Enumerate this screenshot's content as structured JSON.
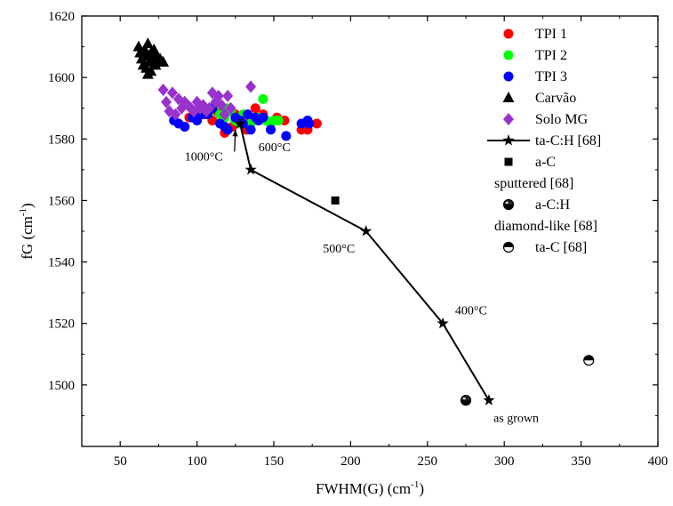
{
  "chart_data": {
    "type": "scatter",
    "xlabel": "FWHM(G) (cm",
    "xlabel_sup": "-1",
    "xlabel_end": ")",
    "ylabel": "fG (cm",
    "ylabel_sup": "-1",
    "ylabel_end": ")",
    "xlim": [
      25,
      400
    ],
    "ylim": [
      1480,
      1620
    ],
    "xticks": [
      50,
      100,
      150,
      200,
      250,
      300,
      350,
      400
    ],
    "yticks": [
      1500,
      1520,
      1540,
      1560,
      1580,
      1600,
      1620
    ],
    "grid": false,
    "legend_position": "top-right",
    "series": [
      {
        "name": "TPI 1",
        "marker": "circle",
        "color": "#ff0000",
        "points": [
          [
            95,
            1587
          ],
          [
            100,
            1588
          ],
          [
            105,
            1588
          ],
          [
            110,
            1586
          ],
          [
            113,
            1589
          ],
          [
            118,
            1582
          ],
          [
            120,
            1583
          ],
          [
            123,
            1584
          ],
          [
            125,
            1588
          ],
          [
            128,
            1587
          ],
          [
            130,
            1585
          ],
          [
            132,
            1583
          ],
          [
            135,
            1587
          ],
          [
            138,
            1590
          ],
          [
            140,
            1586
          ],
          [
            143,
            1588
          ],
          [
            148,
            1585
          ],
          [
            152,
            1587
          ],
          [
            157,
            1586
          ],
          [
            168,
            1583
          ],
          [
            170,
            1585
          ],
          [
            172,
            1583
          ],
          [
            178,
            1585
          ]
        ]
      },
      {
        "name": "TPI 2",
        "marker": "circle",
        "color": "#00ff00",
        "points": [
          [
            105,
            1590
          ],
          [
            108,
            1589
          ],
          [
            112,
            1591
          ],
          [
            115,
            1588
          ],
          [
            118,
            1587
          ],
          [
            120,
            1590
          ],
          [
            122,
            1589
          ],
          [
            125,
            1586
          ],
          [
            128,
            1585
          ],
          [
            130,
            1588
          ],
          [
            135,
            1585
          ],
          [
            140,
            1587
          ],
          [
            143,
            1593
          ],
          [
            145,
            1586
          ],
          [
            148,
            1585
          ],
          [
            150,
            1586
          ],
          [
            153,
            1586
          ]
        ]
      },
      {
        "name": "TPI 3",
        "marker": "circle",
        "color": "#0000ff",
        "points": [
          [
            85,
            1586
          ],
          [
            88,
            1585
          ],
          [
            92,
            1584
          ],
          [
            97,
            1587
          ],
          [
            100,
            1586
          ],
          [
            103,
            1588
          ],
          [
            107,
            1588
          ],
          [
            110,
            1590
          ],
          [
            115,
            1585
          ],
          [
            118,
            1584
          ],
          [
            120,
            1583
          ],
          [
            125,
            1587
          ],
          [
            128,
            1586
          ],
          [
            130,
            1585
          ],
          [
            133,
            1588
          ],
          [
            135,
            1583
          ],
          [
            138,
            1587
          ],
          [
            140,
            1586
          ],
          [
            143,
            1587
          ],
          [
            148,
            1583
          ],
          [
            158,
            1581
          ],
          [
            168,
            1585
          ],
          [
            172,
            1586
          ],
          [
            173,
            1585
          ]
        ]
      },
      {
        "name": "Carvão",
        "marker": "triangle",
        "color": "#000000",
        "points": [
          [
            62,
            1610
          ],
          [
            63,
            1608
          ],
          [
            64,
            1606
          ],
          [
            65,
            1604
          ],
          [
            66,
            1609
          ],
          [
            67,
            1603
          ],
          [
            67,
            1607
          ],
          [
            68,
            1601
          ],
          [
            68,
            1611
          ],
          [
            69,
            1605
          ],
          [
            70,
            1602
          ],
          [
            70,
            1608
          ],
          [
            71,
            1606
          ],
          [
            72,
            1609
          ],
          [
            73,
            1604
          ],
          [
            74,
            1607
          ],
          [
            75,
            1605
          ],
          [
            76,
            1606
          ],
          [
            78,
            1605
          ]
        ]
      },
      {
        "name": "Solo MG",
        "marker": "diamond",
        "color": "#9932cc",
        "points": [
          [
            78,
            1596
          ],
          [
            80,
            1592
          ],
          [
            82,
            1589
          ],
          [
            84,
            1595
          ],
          [
            86,
            1588
          ],
          [
            88,
            1593
          ],
          [
            90,
            1590
          ],
          [
            92,
            1592
          ],
          [
            94,
            1591
          ],
          [
            96,
            1590
          ],
          [
            98,
            1589
          ],
          [
            100,
            1592
          ],
          [
            102,
            1590
          ],
          [
            104,
            1591
          ],
          [
            106,
            1589
          ],
          [
            108,
            1590
          ],
          [
            110,
            1595
          ],
          [
            112,
            1592
          ],
          [
            114,
            1594
          ],
          [
            116,
            1591
          ],
          [
            118,
            1588
          ],
          [
            120,
            1594
          ],
          [
            122,
            1590
          ],
          [
            135,
            1597
          ]
        ]
      },
      {
        "name": "ta-C:H [68]",
        "marker": "star",
        "color": "#000000",
        "line": true,
        "points": [
          [
            128,
            1585
          ],
          [
            135,
            1570
          ],
          [
            210,
            1550
          ],
          [
            260,
            1520
          ],
          [
            290,
            1495
          ]
        ]
      },
      {
        "name": "a-C sputtered [68]",
        "legend_lines": [
          "a-C",
          "sputtered [68]"
        ],
        "marker": "square",
        "color": "#000000",
        "points": [
          [
            190,
            1560
          ]
        ]
      },
      {
        "name": "a-C:H diamond-like [68]",
        "legend_lines": [
          "a-C:H",
          "diamond-like [68]"
        ],
        "marker": "half-circle-bottom",
        "color": "#000000",
        "points": [
          [
            275,
            1495
          ]
        ]
      },
      {
        "name": "ta-C [68]",
        "marker": "half-circle-top",
        "color": "#000000",
        "points": [
          [
            355,
            1508
          ]
        ]
      }
    ],
    "annotations": [
      {
        "text": "1000°C",
        "x": 92,
        "y": 1573,
        "arrow_to": [
          125,
          1583
        ]
      },
      {
        "text": "600°C",
        "x": 140,
        "y": 1576
      },
      {
        "text": "500°C",
        "x": 182,
        "y": 1543
      },
      {
        "text": "400°C",
        "x": 268,
        "y": 1523
      },
      {
        "text": "as grown",
        "x": 293,
        "y": 1488
      }
    ]
  }
}
